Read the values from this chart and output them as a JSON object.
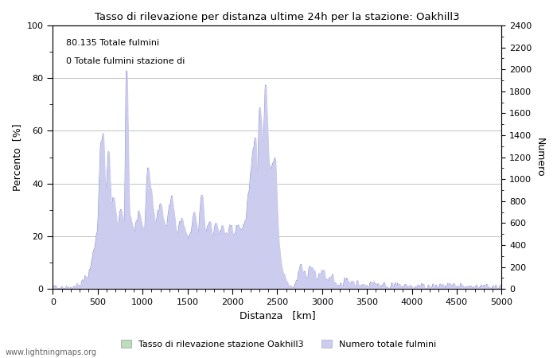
{
  "title": "Tasso di rilevazione per distanza ultime 24h per la stazione: Oakhill3",
  "xlabel": "Distanza   [km]",
  "ylabel_left": "Percento  [%]",
  "ylabel_right": "Numero",
  "xlim": [
    0,
    5000
  ],
  "ylim_left": [
    0,
    100
  ],
  "ylim_right": [
    0,
    2400
  ],
  "annotation1": "80.135 Totale fulmini",
  "annotation2": "0 Totale fulmini stazione di",
  "legend_label1": "Tasso di rilevazione stazione Oakhill3",
  "legend_label2": "Numero totale fulmini",
  "watermark": "www.lightningmaps.org",
  "line_color": "#8888cc",
  "fill_color_blue": "#ccccee",
  "fill_color_green": "#bbddbb",
  "background_color": "#ffffff",
  "grid_color": "#aaaaaa"
}
